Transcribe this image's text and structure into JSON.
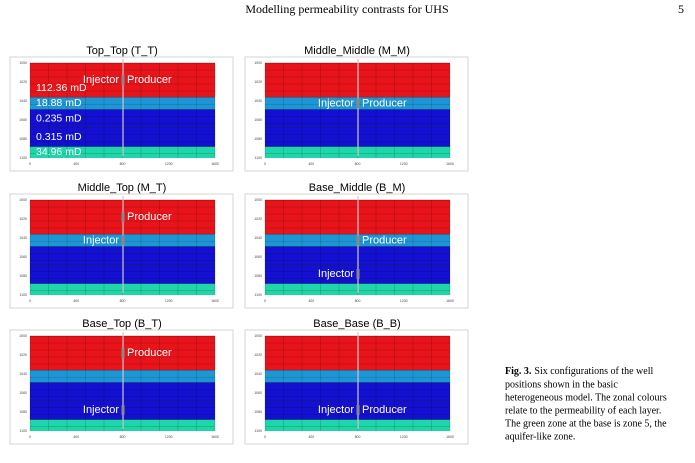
{
  "header": {
    "title": "Modelling permeability contrasts for UHS",
    "page": "5"
  },
  "zones": [
    {
      "label": "112.36 mD",
      "color": "#e8141a"
    },
    {
      "label": "18.88 mD",
      "color": "#1e96d6"
    },
    {
      "label": "0.235 mD",
      "color": "#1410d2"
    },
    {
      "label": "0.315 mD",
      "color": "#1410d2"
    },
    {
      "label": "34.96 mD",
      "color": "#1ed6a8"
    }
  ],
  "wells": {
    "injector": "Injector",
    "producer": "Producer"
  },
  "axes": {
    "xticks": [
      "0",
      "400",
      "800",
      "1200",
      "1600"
    ],
    "yticks": [
      "1000",
      "1020",
      "1040",
      "1060",
      "1080",
      "1100"
    ]
  },
  "panels": [
    {
      "title": "Top_Top (T_T)"
    },
    {
      "title": "Middle_Middle (M_M)"
    },
    {
      "title": "Middle_Top (M_T)"
    },
    {
      "title": "Base_Middle (B_M)"
    },
    {
      "title": "Base_Top (B_T)"
    },
    {
      "title": "Base_Base (B_B)"
    }
  ],
  "caption": {
    "label": "Fig. 3.",
    "lines": [
      "Six configurations of the well",
      "positions shown in the basic",
      "heterogeneous model. The zonal colours",
      "relate to the permeability of each layer.",
      "The green zone at the base is zone 5, the",
      "aquifer-like zone."
    ]
  }
}
